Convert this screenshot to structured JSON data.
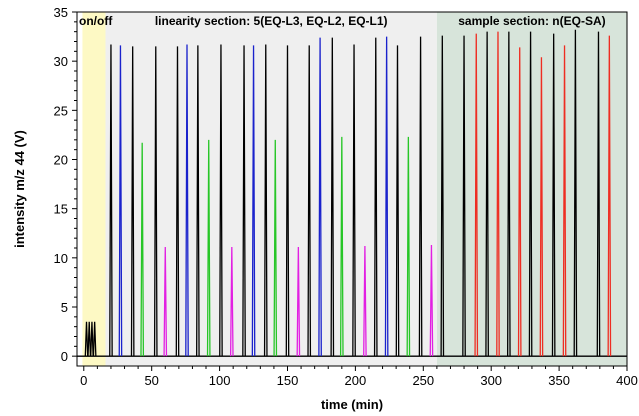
{
  "chart_data": {
    "type": "line",
    "xlabel": "time (min)",
    "ylabel": "intensity m/z 44 (V)",
    "xlim": [
      -5,
      400
    ],
    "ylim": [
      -1,
      35
    ],
    "xticks": [
      0,
      50,
      100,
      150,
      200,
      250,
      300,
      350,
      400
    ],
    "yticks": [
      0,
      5,
      10,
      15,
      20,
      25,
      30,
      35
    ],
    "grid": false,
    "sections": [
      {
        "label": "on/off",
        "x_start": -1,
        "x_end": 16,
        "color": "#fdf9c4"
      },
      {
        "label": "linearity section: 5(EQ-L3, EQ-L2, EQ-L1)",
        "x_start": 16,
        "x_end": 260,
        "color": "#efefef"
      },
      {
        "label": "sample section: n(EQ-SA)",
        "x_start": 260,
        "x_end": 400,
        "color": "#d7e4da"
      }
    ],
    "onoff_peaks": {
      "x": [
        2,
        4,
        6,
        8
      ],
      "value": 3.5,
      "color": "#000000"
    },
    "series": [
      {
        "color": "#000000",
        "peaks": [
          [
            20,
            31.7
          ],
          [
            36,
            31.5
          ],
          [
            53,
            31.5
          ],
          [
            69,
            31.5
          ],
          [
            84,
            31.6
          ],
          [
            101,
            31.7
          ],
          [
            118,
            31.6
          ],
          [
            134,
            31.7
          ],
          [
            150,
            31.6
          ],
          [
            166,
            31.6
          ],
          [
            183,
            32.4
          ],
          [
            199,
            31.7
          ],
          [
            215,
            32.4
          ],
          [
            231,
            31.6
          ],
          [
            248,
            32.5
          ],
          [
            264,
            32.6
          ],
          [
            280,
            32.6
          ],
          [
            297,
            33.0
          ],
          [
            313,
            33.0
          ],
          [
            329,
            33.0
          ],
          [
            346,
            32.8
          ],
          [
            362,
            33.2
          ],
          [
            379,
            33.0
          ]
        ]
      },
      {
        "color": "#1a22cc",
        "peaks": [
          [
            27,
            31.6
          ],
          [
            76,
            31.7
          ],
          [
            125,
            31.6
          ],
          [
            174,
            32.4
          ],
          [
            223,
            32.5
          ]
        ]
      },
      {
        "color": "#27c627",
        "peaks": [
          [
            43,
            21.7
          ],
          [
            92,
            22.0
          ],
          [
            141,
            22.0
          ],
          [
            190,
            22.3
          ],
          [
            239,
            22.3
          ]
        ]
      },
      {
        "color": "#e21fe2",
        "peaks": [
          [
            60,
            11.1
          ],
          [
            109,
            11.1
          ],
          [
            158,
            11.1
          ],
          [
            207,
            11.2
          ],
          [
            256,
            11.3
          ]
        ]
      },
      {
        "color": "#ee2d22",
        "peaks": [
          [
            289,
            32.8
          ],
          [
            305,
            33.0
          ],
          [
            321,
            31.4
          ],
          [
            337,
            30.4
          ],
          [
            354,
            31.6
          ],
          [
            387,
            32.6
          ]
        ]
      }
    ]
  }
}
